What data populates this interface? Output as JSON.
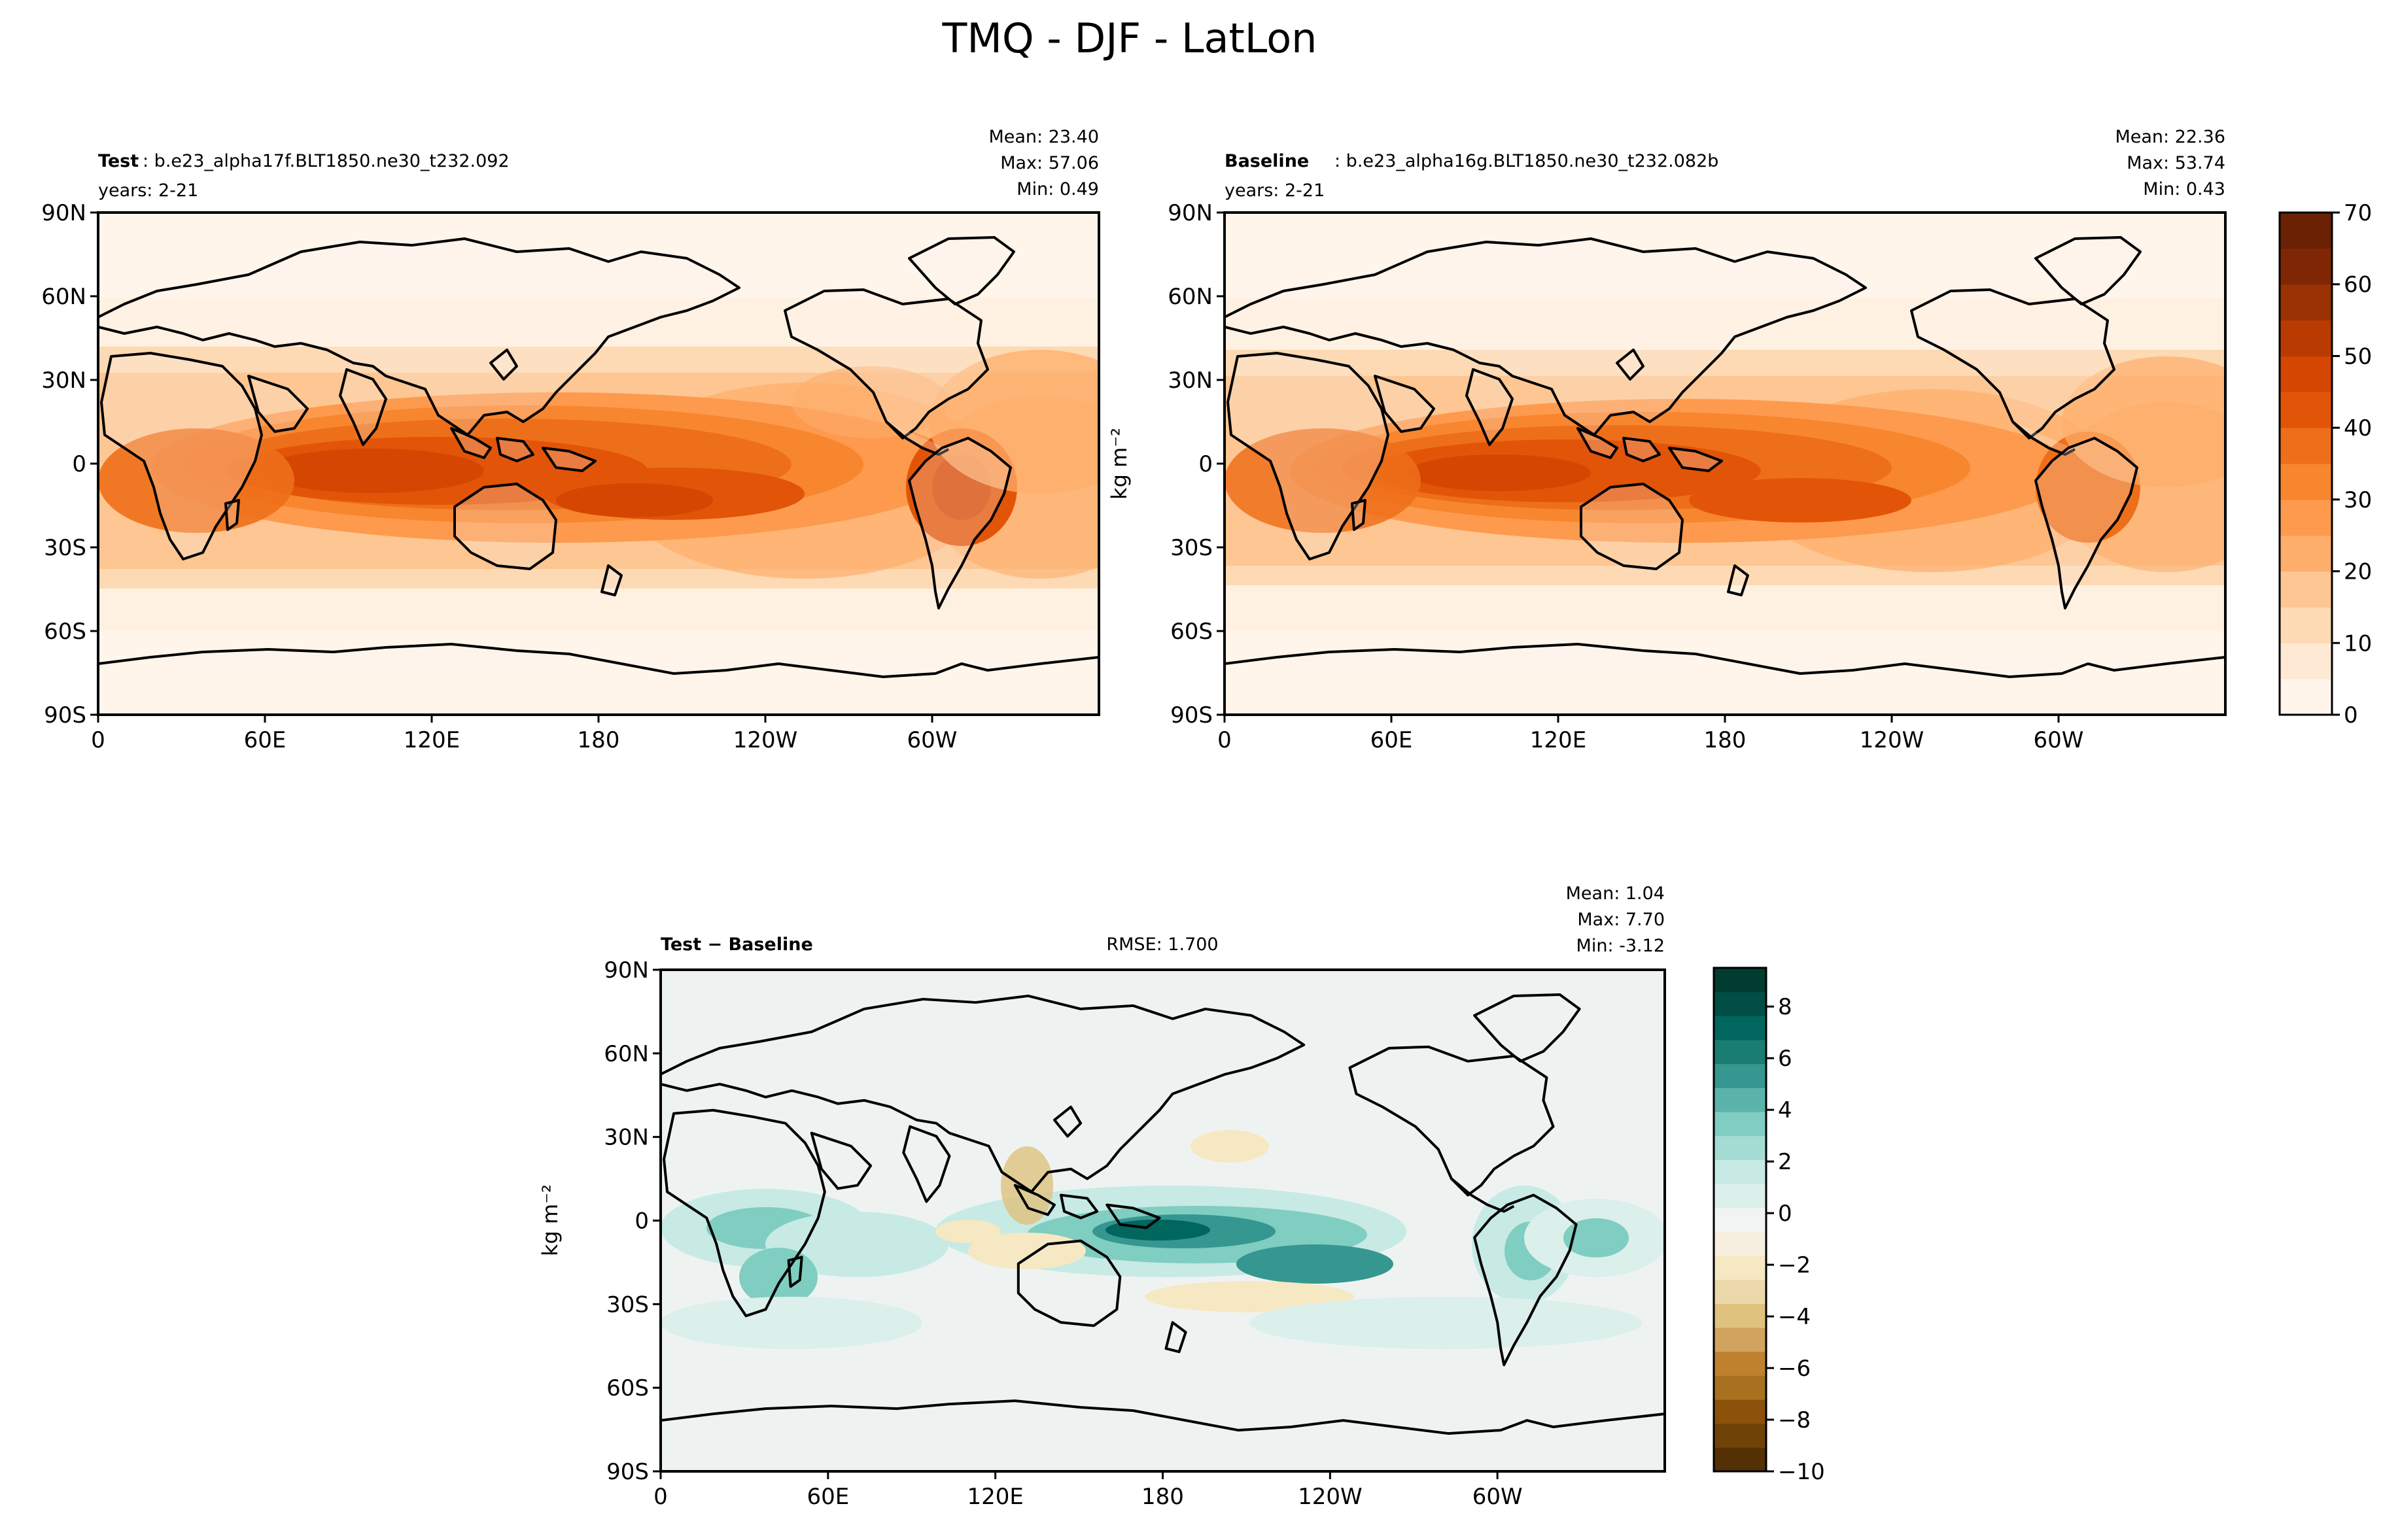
{
  "figure": {
    "title": "TMQ - DJF - LatLon"
  },
  "axes": {
    "lat_ticks": [
      "90N",
      "60N",
      "30N",
      "0",
      "30S",
      "60S",
      "90S"
    ],
    "lon_ticks": [
      "0",
      "60E",
      "120E",
      "180",
      "120W",
      "60W"
    ],
    "unit_label": "kg m⁻²"
  },
  "panels": {
    "test": {
      "label_bold": "Test",
      "label_rest": ": b.e23_alpha17f.BLT1850.ne30_t232.092",
      "years": "years: 2-21",
      "stats": [
        "Mean: 23.40",
        "Max: 57.06",
        "Min:  0.49"
      ]
    },
    "baseline": {
      "label_bold": "Baseline",
      "label_rest": ": b.e23_alpha16g.BLT1850.ne30_t232.082b",
      "years": "years: 2-21",
      "stats": [
        "Mean: 22.36",
        "Max: 53.74",
        "Min:  0.43"
      ]
    },
    "diff": {
      "label_bold": "Test − Baseline",
      "rmse": "RMSE: 1.700",
      "stats": [
        "Mean:  1.04",
        "Max:  7.70",
        "Min: -3.12"
      ]
    }
  },
  "colorbars": {
    "main": {
      "ticks": [
        "0",
        "10",
        "20",
        "30",
        "40",
        "50",
        "60",
        "70"
      ],
      "colors": [
        "#fff5eb",
        "#fee9d4",
        "#fdd9b4",
        "#fdc692",
        "#fdae6b",
        "#fd9a4e",
        "#f7862f",
        "#ee6f1a",
        "#e25508",
        "#d44602",
        "#b93b02",
        "#9a3203",
        "#7f2704",
        "#6b2104"
      ]
    },
    "diff": {
      "ticks": [
        "−10",
        "−8",
        "−6",
        "−4",
        "−2",
        "0",
        "2",
        "4",
        "6",
        "8"
      ],
      "colors": [
        "#543005",
        "#6f4208",
        "#8c510a",
        "#a8711f",
        "#bf812d",
        "#d0a45f",
        "#dfc27d",
        "#ecd9ab",
        "#f6e8c3",
        "#f7efe0",
        "#f1f4f3",
        "#dbefeb",
        "#c7eae5",
        "#a4dcd3",
        "#80cdc1",
        "#5ab4ac",
        "#35978f",
        "#1a7d73",
        "#01665e",
        "#004e45",
        "#003c30"
      ]
    }
  },
  "colors": {
    "land_outline": "#000000",
    "test_base": "#fff1e2",
    "diff_base": "#eef3f2"
  }
}
